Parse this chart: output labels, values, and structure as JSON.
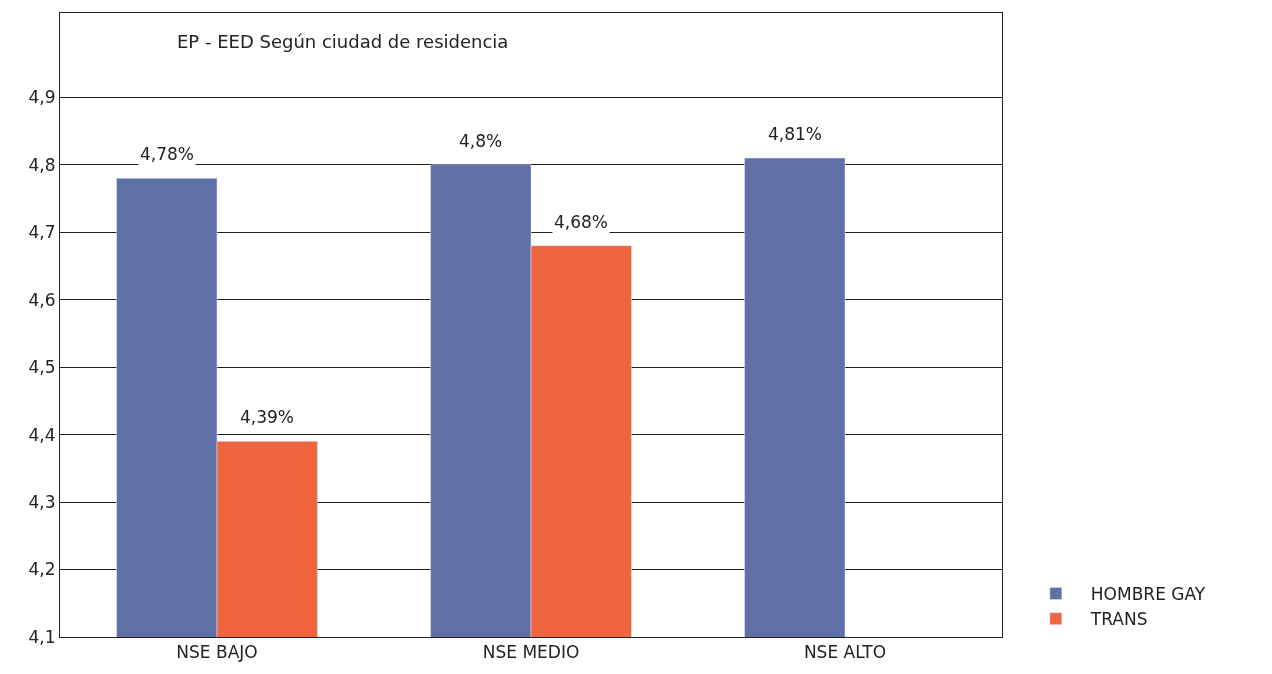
{
  "chart_data": {
    "type": "bar",
    "title": "EP - EED Según ciudad de residencia",
    "categories": [
      "NSE BAJO",
      "NSE MEDIO",
      "NSE ALTO"
    ],
    "series": [
      {
        "name": "HOMBRE GAY",
        "color": "#5f70a6",
        "values": [
          4.78,
          4.8,
          4.81
        ],
        "value_labels": [
          "4,78%",
          "4,8%",
          "4,81%"
        ]
      },
      {
        "name": "TRANS",
        "color": "#f06440",
        "values": [
          4.39,
          4.68,
          null
        ],
        "value_labels": [
          "4,39%",
          "4,68%",
          null
        ]
      }
    ],
    "ylim": [
      4.1,
      5.025
    ],
    "yticks": [
      {
        "value": 4.1,
        "label": "4,1"
      },
      {
        "value": 4.2,
        "label": "4,2"
      },
      {
        "value": 4.3,
        "label": "4,3"
      },
      {
        "value": 4.4,
        "label": "4,4"
      },
      {
        "value": 4.5,
        "label": "4,5"
      },
      {
        "value": 4.6,
        "label": "4,6"
      },
      {
        "value": 4.7,
        "label": "4,7"
      },
      {
        "value": 4.8,
        "label": "4,8"
      },
      {
        "value": 4.9,
        "label": "4,9"
      }
    ],
    "grid": "y",
    "legend": "bottom right"
  }
}
